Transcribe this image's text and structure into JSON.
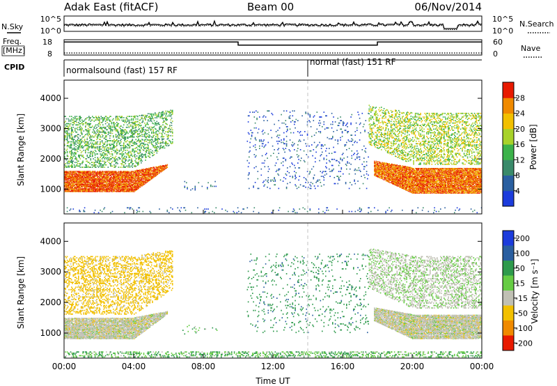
{
  "header": {
    "station": "Adak East (fitACF)",
    "beam": "Beam 00",
    "date": "06/Nov/2014"
  },
  "noise_panel": {
    "left_label": "N.Sky",
    "right_label": "N.Search",
    "left_ticks": [
      "10^5",
      "10^0"
    ],
    "right_ticks": [
      "10^5",
      "10^0"
    ]
  },
  "freq_panel": {
    "left_label_1": "Freq.",
    "left_label_2": "[MHz]",
    "right_label": "Nave",
    "left_ticks": [
      "18",
      "8"
    ],
    "right_ticks": [
      "60",
      "0"
    ],
    "freq_steps": [
      {
        "from_hour": 0,
        "to_hour": 10,
        "mhz": 16.5
      },
      {
        "from_hour": 10,
        "to_hour": 18,
        "mhz": 14.5
      },
      {
        "from_hour": 18,
        "to_hour": 24,
        "mhz": 16.5
      }
    ],
    "nave_level": 8
  },
  "cpid": {
    "label": "CPID",
    "modes": [
      {
        "start_hour": 0,
        "text": "normalsound (fast) 157 RF"
      },
      {
        "start_hour": 14,
        "text": "normal (fast) 151 RF"
      }
    ]
  },
  "x_axis": {
    "title": "Time UT",
    "ticks": [
      "00:00",
      "04:00",
      "08:00",
      "12:00",
      "16:00",
      "20:00",
      "00:00"
    ]
  },
  "power_panel": {
    "ylabel": "Slant Range [km]",
    "yticks": [
      "1000",
      "2000",
      "3000",
      "4000"
    ],
    "colorbar_label": "Power [dB]",
    "colorbar_ticks": [
      "4",
      "8",
      "12",
      "16",
      "20",
      "24",
      "28"
    ],
    "colorbar_colors": [
      "#1c3cdc",
      "#2a5fa0",
      "#3a8a6a",
      "#3cb24a",
      "#a8d22a",
      "#f2c000",
      "#f08a00",
      "#e81a00"
    ]
  },
  "velocity_panel": {
    "ylabel": "Slant Range [km]",
    "yticks": [
      "1000",
      "2000",
      "3000",
      "4000"
    ],
    "colorbar_label": "Velocity [m s⁻¹]",
    "colorbar_ticks": [
      "200",
      "100",
      "50",
      "15",
      "-15",
      "-50",
      "-100",
      "-200"
    ],
    "colorbar_colors": [
      "#1c3cdc",
      "#2a5fa0",
      "#2e9a4c",
      "#66cc44",
      "#c0c0b4",
      "#f2c000",
      "#f08a00",
      "#e81a00"
    ]
  },
  "chart_data": [
    {
      "type": "heatmap",
      "title": "Power",
      "ylabel": "Slant Range [km]",
      "xlabel": "Time UT",
      "xlim_hours": [
        0,
        24
      ],
      "ylim_km": [
        180,
        4600
      ],
      "color_scale_db": [
        0,
        32
      ],
      "echo_regions": [
        {
          "desc": "ground scatter band",
          "t_start": 0.0,
          "t_end": 5.9,
          "range_start_km": 900,
          "range_end_km": 1600,
          "power_db": 28
        },
        {
          "desc": "upper band",
          "t_start": 0.0,
          "t_end": 6.2,
          "range_start_km": 1700,
          "range_end_km": 3400,
          "power_db": 14
        },
        {
          "desc": "weak patch",
          "t_start": 6.8,
          "t_end": 8.8,
          "range_start_km": 950,
          "range_end_km": 1250,
          "power_db": 7
        },
        {
          "desc": "near-range weak",
          "t_start": 0.0,
          "t_end": 24.0,
          "range_start_km": 200,
          "range_end_km": 380,
          "power_db": 6
        },
        {
          "desc": "scattered weak",
          "t_start": 10.5,
          "t_end": 17.5,
          "range_start_km": 1000,
          "range_end_km": 3600,
          "power_db": 5
        },
        {
          "desc": "ground scatter band",
          "t_start": 17.8,
          "t_end": 24.0,
          "range_start_km": 850,
          "range_end_km": 1700,
          "power_db": 27
        },
        {
          "desc": "upper band",
          "t_start": 17.5,
          "t_end": 24.0,
          "range_start_km": 1800,
          "range_end_km": 3500,
          "power_db": 18
        }
      ]
    },
    {
      "type": "heatmap",
      "title": "Velocity",
      "ylabel": "Slant Range [km]",
      "xlabel": "Time UT",
      "xlim_hours": [
        0,
        24
      ],
      "ylim_km": [
        180,
        4600
      ],
      "color_scale_ms": [
        -200,
        200
      ],
      "echo_regions": [
        {
          "desc": "ground scatter",
          "t_start": 0.0,
          "t_end": 5.9,
          "range_start_km": 800,
          "range_end_km": 1500,
          "velocity_ms": 0
        },
        {
          "desc": "upper mixed",
          "t_start": 0.0,
          "t_end": 6.2,
          "range_start_km": 1600,
          "range_end_km": 3500,
          "velocity_ms": -30
        },
        {
          "desc": "weak patch",
          "t_start": 6.8,
          "t_end": 8.8,
          "range_start_km": 950,
          "range_end_km": 1250,
          "velocity_ms": 30
        },
        {
          "desc": "near-range",
          "t_start": 0.0,
          "t_end": 24.0,
          "range_start_km": 200,
          "range_end_km": 400,
          "velocity_ms": 30
        },
        {
          "desc": "scattered",
          "t_start": 10.5,
          "t_end": 17.5,
          "range_start_km": 1000,
          "range_end_km": 3600,
          "velocity_ms": 60
        },
        {
          "desc": "ground scatter",
          "t_start": 17.8,
          "t_end": 24.0,
          "range_start_km": 800,
          "range_end_km": 1600,
          "velocity_ms": 0
        },
        {
          "desc": "upper mixed",
          "t_start": 17.5,
          "t_end": 24.0,
          "range_start_km": 1800,
          "range_end_km": 3500,
          "velocity_ms": 10
        }
      ]
    }
  ]
}
